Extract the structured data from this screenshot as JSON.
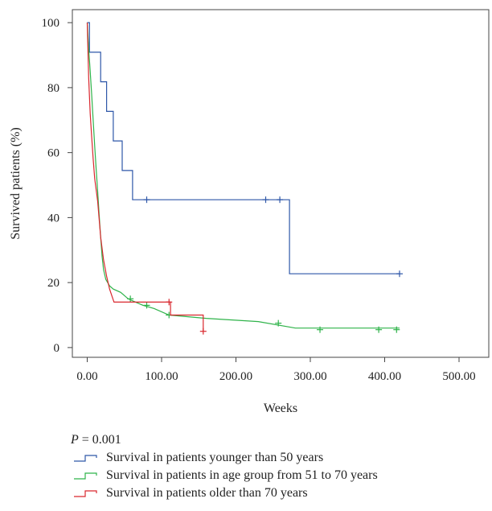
{
  "chart_data": {
    "type": "line",
    "xlabel": "Weeks",
    "ylabel": "Survived patients (%)",
    "xlim": [
      -20,
      540
    ],
    "ylim": [
      -3,
      104
    ],
    "xticks": [
      0,
      100,
      200,
      300,
      400,
      500
    ],
    "xtick_labels": [
      "0.00",
      "100.00",
      "200.00",
      "300.00",
      "400.00",
      "500.00"
    ],
    "yticks": [
      0,
      20,
      40,
      60,
      80,
      100
    ],
    "ytick_labels": [
      "0",
      "20",
      "40",
      "60",
      "80",
      "100"
    ],
    "grid": false,
    "legend_position": "bottom",
    "series": [
      {
        "name": "Survival in patients younger than 50 years",
        "color": "#2e57a8",
        "x": [
          0,
          3,
          3,
          18,
          18,
          26,
          26,
          35,
          35,
          47,
          47,
          61,
          61,
          272,
          272,
          420
        ],
        "y": [
          100,
          100,
          90.9,
          90.9,
          81.8,
          81.8,
          72.7,
          72.7,
          63.6,
          63.6,
          54.5,
          54.5,
          45.5,
          45.5,
          22.7,
          22.7
        ],
        "censored": [
          [
            80,
            45.5
          ],
          [
            240,
            45.5
          ],
          [
            259,
            45.5
          ],
          [
            420,
            22.7
          ]
        ]
      },
      {
        "name": "Survival in patients in age group from 51 to 70 years",
        "color": "#2fb34a",
        "x": [
          0,
          2,
          4,
          6,
          8,
          10,
          12,
          14,
          16,
          18,
          20,
          22,
          25,
          30,
          35,
          45,
          55,
          65,
          75,
          90,
          110,
          160,
          230,
          280,
          420
        ],
        "y": [
          100,
          92,
          85,
          78,
          70,
          62,
          55,
          48,
          41,
          34,
          28,
          24,
          21,
          19,
          18,
          17,
          15,
          14,
          13,
          12,
          10,
          9,
          8,
          6,
          6
        ],
        "censored": [
          [
            58,
            15
          ],
          [
            80,
            13
          ],
          [
            110,
            10
          ],
          [
            257,
            7.5
          ],
          [
            313,
            5.5
          ],
          [
            392,
            5.5
          ],
          [
            416,
            5.5
          ]
        ]
      },
      {
        "name": "Survival in patients older than 70 years",
        "color": "#d9272e",
        "x": [
          0,
          2,
          4,
          6,
          8,
          10,
          14,
          18,
          22,
          26,
          30,
          36,
          112,
          112,
          156,
          156
        ],
        "y": [
          100,
          83,
          72,
          65,
          58,
          52,
          45,
          34,
          27,
          22,
          18,
          14,
          14,
          10,
          10,
          5
        ],
        "censored": [
          [
            110,
            14
          ],
          [
            156,
            5
          ]
        ]
      }
    ]
  },
  "pvalue": {
    "label": "P",
    "text": " = 0.001"
  }
}
